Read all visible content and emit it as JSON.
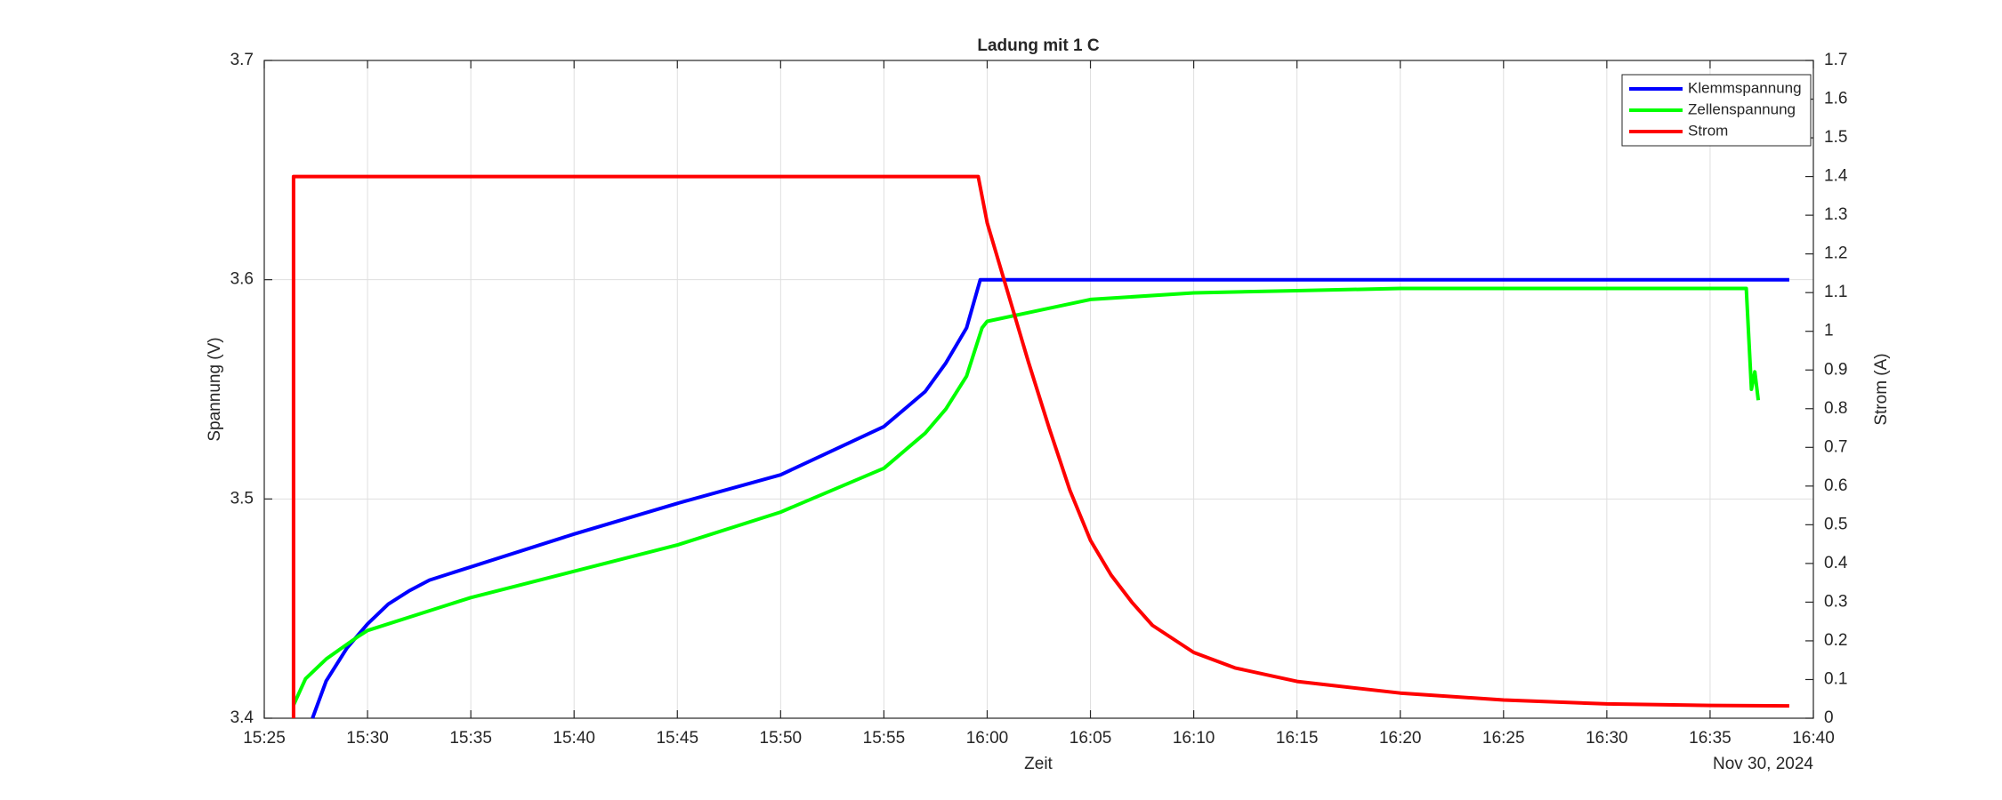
{
  "chart_data": {
    "type": "line",
    "title": "Ladung mit 1 C",
    "xlabel": "Zeit",
    "ylabel": "Spannung (V)",
    "y2label": "Strom (A)",
    "date_label": "Nov 30, 2024",
    "xlim": [
      "15:25",
      "16:40"
    ],
    "xticks": [
      "15:25",
      "15:30",
      "15:35",
      "15:40",
      "15:45",
      "15:50",
      "15:55",
      "16:00",
      "16:05",
      "16:10",
      "16:15",
      "16:20",
      "16:25",
      "16:30",
      "16:35",
      "16:40"
    ],
    "ylim": [
      3.4,
      3.7
    ],
    "yticks": [
      3.4,
      3.5,
      3.6,
      3.7
    ],
    "y2lim": [
      0,
      1.7
    ],
    "y2ticks": [
      0,
      0.1,
      0.2,
      0.3,
      0.4,
      0.5,
      0.6,
      0.7,
      0.8,
      0.9,
      1,
      1.1,
      1.2,
      1.3,
      1.4,
      1.5,
      1.6,
      1.7
    ],
    "grid": true,
    "legend": "upper right",
    "series": [
      {
        "name": "Klemmspannung",
        "color": "#0000ff",
        "x": [
          "15:27:20",
          "15:28",
          "15:29",
          "15:30",
          "15:31",
          "15:32",
          "15:33",
          "15:35",
          "15:40",
          "15:45",
          "15:50",
          "15:55",
          "15:57",
          "15:58",
          "15:59",
          "15:59:40",
          "16:38:50"
        ],
        "values": [
          3.4,
          3.417,
          3.432,
          3.443,
          3.452,
          3.458,
          3.463,
          3.469,
          3.484,
          3.498,
          3.511,
          3.533,
          3.549,
          3.562,
          3.578,
          3.6,
          3.6
        ]
      },
      {
        "name": "Zellenspannung",
        "color": "#00ff00",
        "x": [
          "15:26:25",
          "15:27",
          "15:28",
          "15:29:30",
          "15:30",
          "15:35",
          "15:40",
          "15:45",
          "15:50",
          "15:55",
          "15:57",
          "15:58",
          "15:59",
          "15:59:45",
          "16:00",
          "16:02",
          "16:05",
          "16:10",
          "16:15",
          "16:20",
          "16:30",
          "16:36:45",
          "16:37:00",
          "16:37:10",
          "16:37:20"
        ],
        "values": [
          3.406,
          3.418,
          3.427,
          3.437,
          3.44,
          3.455,
          3.467,
          3.479,
          3.494,
          3.514,
          3.53,
          3.541,
          3.556,
          3.578,
          3.581,
          3.585,
          3.591,
          3.594,
          3.595,
          3.596,
          3.596,
          3.596,
          3.55,
          3.558,
          3.545
        ]
      },
      {
        "name": "Strom",
        "color": "#ff0000",
        "axis": "y2",
        "x": [
          "15:26:25",
          "15:26:25",
          "15:59:34",
          "16:00",
          "16:01",
          "16:02",
          "16:03",
          "16:04",
          "16:05",
          "16:06",
          "16:07",
          "16:08",
          "16:10",
          "16:12",
          "16:15",
          "16:20",
          "16:25",
          "16:30",
          "16:35",
          "16:38:50"
        ],
        "values": [
          0,
          1.4,
          1.4,
          1.28,
          1.1,
          0.92,
          0.75,
          0.59,
          0.46,
          0.37,
          0.3,
          0.24,
          0.17,
          0.13,
          0.095,
          0.065,
          0.047,
          0.037,
          0.033,
          0.032
        ]
      }
    ]
  }
}
